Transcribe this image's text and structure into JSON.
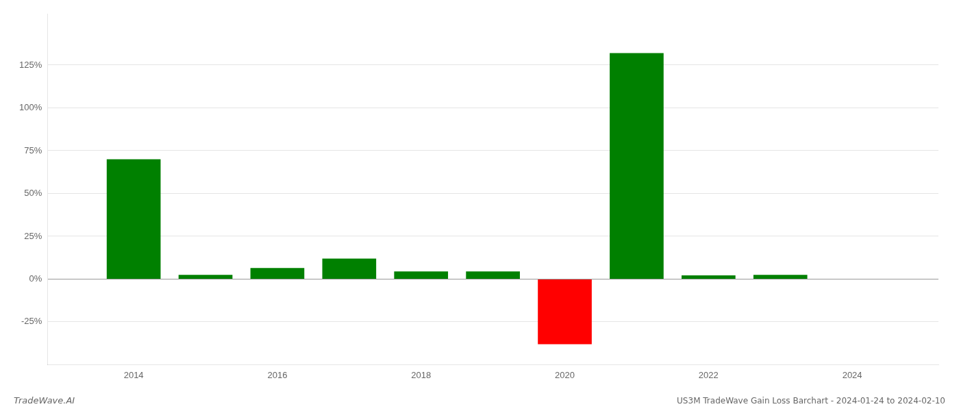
{
  "chart_data": {
    "type": "bar",
    "title": "US3M TradeWave Gain Loss Barchart - 2024-01-24 to 2024-02-10",
    "annotations": [
      "TradeWave.AI"
    ],
    "x": [
      2014,
      2015,
      2016,
      2017,
      2018,
      2019,
      2020,
      2021,
      2022,
      2023
    ],
    "values": [
      0.7,
      0.025,
      0.065,
      0.12,
      0.045,
      0.045,
      -0.38,
      1.32,
      0.022,
      0.025
    ],
    "colors": [
      "#008000",
      "#008000",
      "#008000",
      "#008000",
      "#008000",
      "#008000",
      "#ff0000",
      "#008000",
      "#008000",
      "#008000"
    ],
    "xlim": [
      2012.8,
      2025.2
    ],
    "xticks": [
      2014,
      2016,
      2018,
      2020,
      2022,
      2024
    ],
    "ylim": [
      -0.5,
      1.55
    ],
    "yticks": [
      {
        "value": -0.25,
        "label": "-25%"
      },
      {
        "value": 0,
        "label": "0%"
      },
      {
        "value": 0.25,
        "label": "25%"
      },
      {
        "value": 0.5,
        "label": "50%"
      },
      {
        "value": 0.75,
        "label": "75%"
      },
      {
        "value": 1.0,
        "label": "100%"
      },
      {
        "value": 1.25,
        "label": "125%"
      }
    ],
    "grid": "y"
  }
}
